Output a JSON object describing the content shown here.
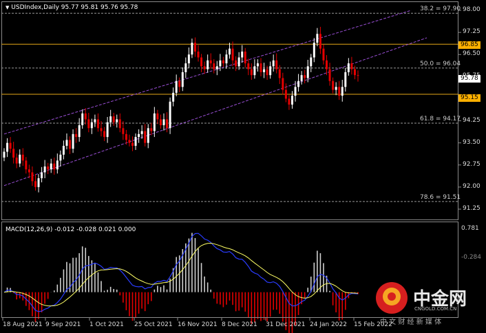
{
  "chart_header": {
    "arrow": "▼",
    "symbol_line": "USDIndex,Daily  95.77 95.81 95.76 95.78"
  },
  "price_axis": [
    "98.00",
    "97.25",
    "96.50",
    "95.75",
    "95.00",
    "94.25",
    "93.50",
    "92.75",
    "92.00",
    "91.25"
  ],
  "price_tags": {
    "upper_level": "96.85",
    "current": "95.78",
    "lower_level": "95.15"
  },
  "fib_levels": [
    {
      "label": "38.2 = 97.90"
    },
    {
      "label": "50.0 = 96.04"
    },
    {
      "label": "61.8 = 94.17"
    },
    {
      "label": "78.6 = 91.51"
    }
  ],
  "macd": {
    "header": "MACD(12,26,9) -0.012 -0.028 0.021 0.000",
    "axis_top": "0.781",
    "axis_bottom": "-0.284"
  },
  "date_axis": [
    "18 Aug 2021",
    "9 Sep 2021",
    "1 Oct 2021",
    "25 Oct 2021",
    "16 Nov 2021",
    "8 Dec 2021",
    "31 Dec 2021",
    "24 Jan 2022",
    "15 Feb 2022"
  ],
  "watermark": {
    "cn_name": "中金网",
    "domain": "CNGOLD.COM.CN",
    "tagline": "中 文 财 经 新 媒 体"
  },
  "colors": {
    "background": "#000000",
    "bull": "#ffffff",
    "bear": "#e60000",
    "horizontal_level": "#e6a817",
    "channel": "#9a4fd6",
    "macd_line": "#2a3cff",
    "signal_line": "#ffff66",
    "hist_pos": "#d0d0d0",
    "hist_neg": "#e60000",
    "tag_bg": "#ffb000"
  },
  "chart_data": {
    "type": "candlestick",
    "instrument": "USDIndex",
    "timeframe": "Daily",
    "last_ohlc": {
      "open": 95.77,
      "high": 95.81,
      "low": 95.76,
      "close": 95.78
    },
    "ylim": [
      91.0,
      98.15
    ],
    "x_ticks": [
      "18 Aug 2021",
      "9 Sep 2021",
      "1 Oct 2021",
      "25 Oct 2021",
      "16 Nov 2021",
      "8 Dec 2021",
      "31 Dec 2021",
      "24 Jan 2022",
      "15 Feb 2022"
    ],
    "horizontal_levels": [
      96.85,
      95.15
    ],
    "fib_levels": [
      {
        "level": 38.2,
        "price": 97.9
      },
      {
        "level": 50.0,
        "price": 96.04
      },
      {
        "level": 61.8,
        "price": 94.17
      },
      {
        "level": 78.6,
        "price": 91.51
      }
    ],
    "channel": {
      "upper": [
        [
          0,
          93.8
        ],
        [
          113,
          97.45
        ]
      ],
      "lower": [
        [
          0,
          92.05
        ],
        [
          113,
          96.25
        ]
      ]
    },
    "closes": [
      93.2,
      93.5,
      93.3,
      93.0,
      92.8,
      93.1,
      92.9,
      92.6,
      92.5,
      92.2,
      92.0,
      92.3,
      92.5,
      92.7,
      92.6,
      92.8,
      92.6,
      92.9,
      93.1,
      93.4,
      93.6,
      93.3,
      93.8,
      93.7,
      94.1,
      94.5,
      94.3,
      94.0,
      94.2,
      94.3,
      94.0,
      93.9,
      93.7,
      94.2,
      94.4,
      94.2,
      94.3,
      94.0,
      93.8,
      93.6,
      93.5,
      93.4,
      93.7,
      93.8,
      93.9,
      93.5,
      94.0,
      93.9,
      94.5,
      94.3,
      94.1,
      94.3,
      94.0,
      94.9,
      95.2,
      95.6,
      95.4,
      95.9,
      96.2,
      96.5,
      96.9,
      96.6,
      96.4,
      96.1,
      96.0,
      96.3,
      96.2,
      96.0,
      96.1,
      96.3,
      96.2,
      96.5,
      96.7,
      96.3,
      96.1,
      96.4,
      96.6,
      96.2,
      96.0,
      95.8,
      96.1,
      96.2,
      95.9,
      96.0,
      95.8,
      96.1,
      96.3,
      96.0,
      95.7,
      95.3,
      95.0,
      94.8,
      95.1,
      95.4,
      95.6,
      95.8,
      95.7,
      96.1,
      96.4,
      96.9,
      97.2,
      96.7,
      96.3,
      96.0,
      95.6,
      95.3,
      95.4,
      95.1,
      95.4,
      95.9,
      96.2,
      96.0,
      95.8,
      95.78
    ],
    "macd_series": {
      "macd_line_name": "MACD",
      "signal_line_name": "Signal",
      "params": "12,26,9",
      "values": {
        "main": -0.012,
        "signal": -0.028,
        "third": 0.021,
        "fourth": 0.0
      },
      "ylim": [
        -0.284,
        0.781
      ]
    }
  }
}
